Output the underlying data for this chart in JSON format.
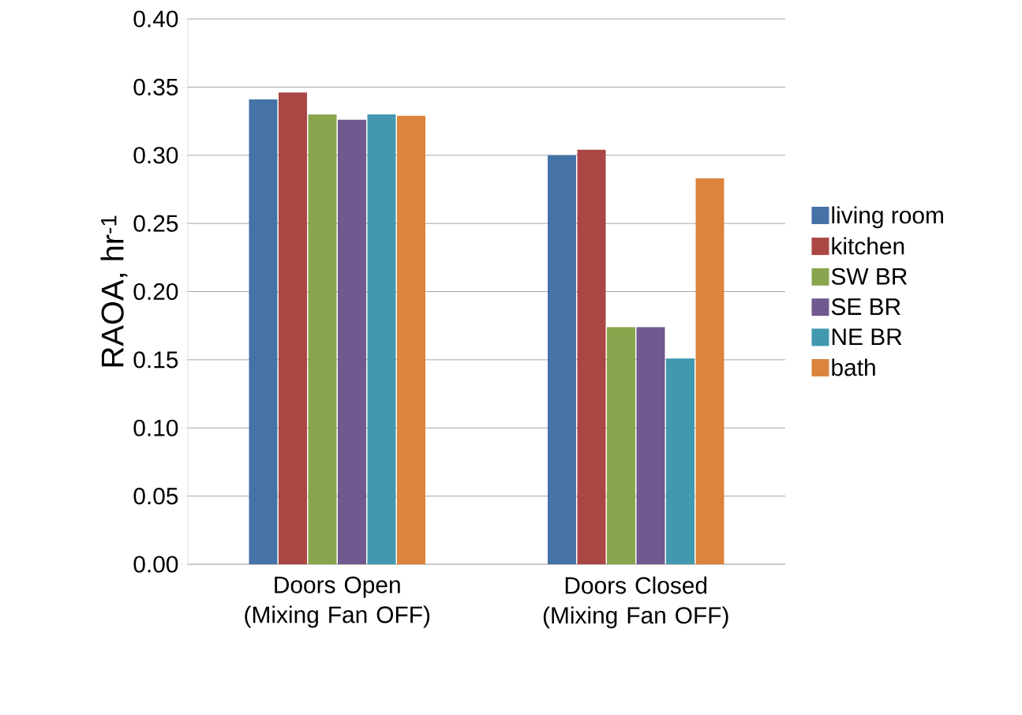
{
  "chart_data": {
    "type": "bar",
    "ylabel": "RAOA, hr$^{-1}$",
    "categories": [
      "Doors Open (Mixing Fan OFF)",
      "Doors Closed (Mixing Fan OFF)"
    ],
    "series": [
      {
        "name": "living room",
        "color": "#4572a7",
        "values": [
          0.341,
          0.3
        ]
      },
      {
        "name": "kitchen",
        "color": "#aa4643",
        "values": [
          0.346,
          0.304
        ]
      },
      {
        "name": "SW BR",
        "color": "#89a54e",
        "values": [
          0.33,
          0.174
        ]
      },
      {
        "name": "SE BR",
        "color": "#71588f",
        "values": [
          0.326,
          0.174
        ]
      },
      {
        "name": "NE BR",
        "color": "#4198af",
        "values": [
          0.33,
          0.151
        ]
      },
      {
        "name": "bath",
        "color": "#db843d",
        "values": [
          0.329,
          0.283
        ]
      }
    ],
    "ylim": [
      0,
      0.4
    ],
    "yticks": [
      {
        "value": 0,
        "label": "0.00"
      },
      {
        "value": 0.05,
        "label": "0.05"
      },
      {
        "value": 0.1,
        "label": "0.10"
      },
      {
        "value": 0.15,
        "label": "0.15"
      },
      {
        "value": 0.2,
        "label": "0.20"
      },
      {
        "value": 0.25,
        "label": "0.25"
      },
      {
        "value": 0.3,
        "label": "0.30"
      },
      {
        "value": 0.35,
        "label": "0.35"
      },
      {
        "value": 0.4,
        "label": "0.40"
      }
    ],
    "grid": "y",
    "legend": "right"
  }
}
